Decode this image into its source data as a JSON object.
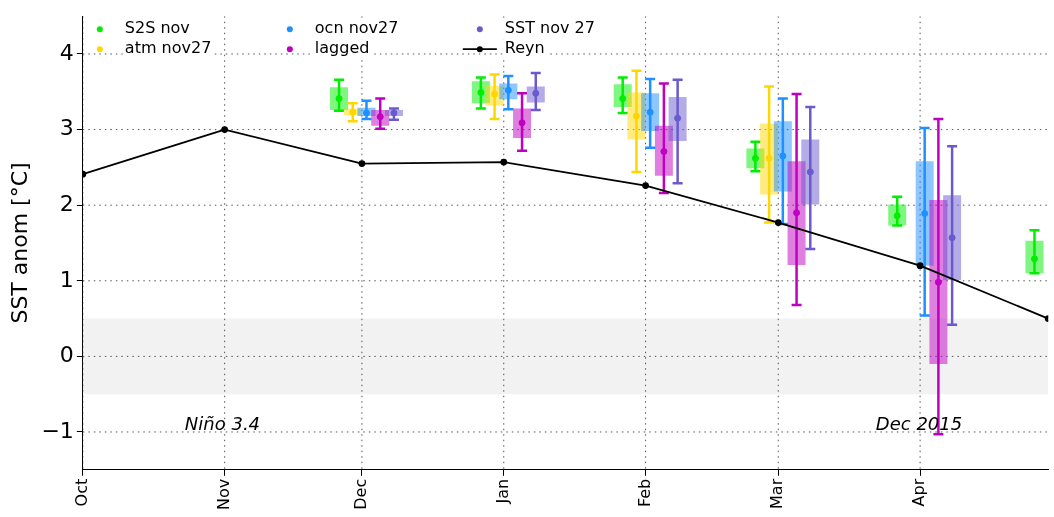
{
  "chart_data": {
    "type": "box",
    "ylabel": "SST anom [°C]",
    "xlim": [
      "2015-10-01",
      "2016-04-29"
    ],
    "xticks": [
      {
        "value": "2015-10-01",
        "label": "Oct"
      },
      {
        "value": "2015-11-01",
        "label": "Nov"
      },
      {
        "value": "2015-12-01",
        "label": "Dec"
      },
      {
        "value": "2016-01-01",
        "label": "Jan"
      },
      {
        "value": "2016-02-01",
        "label": "Feb"
      },
      {
        "value": "2016-03-01",
        "label": "Mar"
      },
      {
        "value": "2016-04-01",
        "label": "Apr"
      }
    ],
    "ylim": [
      -1.5,
      4.5
    ],
    "yticks": [
      -1,
      0,
      1,
      2,
      3,
      4
    ],
    "grid": true,
    "legend": "top left",
    "marker": "circle",
    "bands": [
      {
        "axis": "y",
        "from": -0.5,
        "to": 0.5,
        "color": "#f2f2f2"
      }
    ],
    "annotations": [
      "Niño 3.4",
      "Dec 2015"
    ],
    "series": [
      {
        "name": "S2S nov",
        "color": "#00ee00",
        "x": [
          "2015-11-26",
          "2015-12-27",
          "2016-01-27",
          "2016-02-25",
          "2016-03-27",
          "2016-04-26"
        ],
        "boxes": [
          {
            "low": 3.25,
            "q1": 3.26,
            "median": 3.41,
            "q3": 3.56,
            "high": 3.66
          },
          {
            "low": 3.28,
            "q1": 3.35,
            "median": 3.49,
            "q3": 3.64,
            "high": 3.69
          },
          {
            "low": 3.22,
            "q1": 3.3,
            "median": 3.41,
            "q3": 3.6,
            "high": 3.69
          },
          {
            "low": 2.45,
            "q1": 2.49,
            "median": 2.62,
            "q3": 2.75,
            "high": 2.84
          },
          {
            "low": 1.73,
            "q1": 1.73,
            "median": 1.86,
            "q3": 2.01,
            "high": 2.11
          },
          {
            "low": 1.1,
            "q1": 1.1,
            "median": 1.29,
            "q3": 1.53,
            "high": 1.67
          }
        ]
      },
      {
        "name": "atm nov27",
        "color": "#ffd700",
        "x": [
          "2015-11-29",
          "2015-12-30",
          "2016-01-30",
          "2016-02-28"
        ],
        "boxes": [
          {
            "low": 3.11,
            "q1": 3.19,
            "median": 3.23,
            "q3": 3.28,
            "high": 3.35
          },
          {
            "low": 3.14,
            "q1": 3.32,
            "median": 3.47,
            "q3": 3.58,
            "high": 3.73
          },
          {
            "low": 2.44,
            "q1": 2.87,
            "median": 3.18,
            "q3": 3.49,
            "high": 3.78
          },
          {
            "low": 1.77,
            "q1": 2.14,
            "median": 2.62,
            "q3": 3.08,
            "high": 3.57
          }
        ]
      },
      {
        "name": "ocn nov27",
        "color": "#1e90ff",
        "x": [
          "2015-12-02",
          "2016-01-02",
          "2016-02-02",
          "2016-03-02",
          "2016-04-02"
        ],
        "boxes": [
          {
            "low": 3.14,
            "q1": 3.18,
            "median": 3.22,
            "q3": 3.29,
            "high": 3.38
          },
          {
            "low": 3.27,
            "q1": 3.4,
            "median": 3.52,
            "q3": 3.61,
            "high": 3.71
          },
          {
            "low": 2.76,
            "q1": 2.98,
            "median": 3.23,
            "q3": 3.48,
            "high": 3.67
          },
          {
            "low": 1.75,
            "q1": 2.18,
            "median": 2.65,
            "q3": 3.11,
            "high": 3.41
          },
          {
            "low": 0.54,
            "q1": 1.2,
            "median": 1.89,
            "q3": 2.58,
            "high": 3.02
          }
        ]
      },
      {
        "name": "lagged",
        "color": "#c000c0",
        "x": [
          "2015-12-05",
          "2016-01-05",
          "2016-02-05",
          "2016-03-05",
          "2016-04-05"
        ],
        "boxes": [
          {
            "low": 3.01,
            "q1": 3.05,
            "median": 3.17,
            "q3": 3.26,
            "high": 3.41
          },
          {
            "low": 2.72,
            "q1": 2.89,
            "median": 3.09,
            "q3": 3.28,
            "high": 3.48
          },
          {
            "low": 2.16,
            "q1": 2.39,
            "median": 2.71,
            "q3": 3.05,
            "high": 3.61
          },
          {
            "low": 0.68,
            "q1": 1.21,
            "median": 1.9,
            "q3": 2.58,
            "high": 3.47
          },
          {
            "low": -1.03,
            "q1": -0.1,
            "median": 0.98,
            "q3": 2.07,
            "high": 3.14
          }
        ]
      },
      {
        "name": "SST nov 27",
        "color": "#6a5acd",
        "x": [
          "2015-12-08",
          "2016-01-08",
          "2016-02-08",
          "2016-03-08",
          "2016-04-08"
        ],
        "boxes": [
          {
            "low": 3.13,
            "q1": 3.18,
            "median": 3.22,
            "q3": 3.26,
            "high": 3.28
          },
          {
            "low": 3.26,
            "q1": 3.36,
            "median": 3.48,
            "q3": 3.57,
            "high": 3.75
          },
          {
            "low": 2.29,
            "q1": 2.85,
            "median": 3.15,
            "q3": 3.43,
            "high": 3.66
          },
          {
            "low": 1.42,
            "q1": 2.01,
            "median": 2.44,
            "q3": 2.87,
            "high": 3.3
          },
          {
            "low": 0.42,
            "q1": 1.01,
            "median": 1.57,
            "q3": 2.13,
            "high": 2.78
          }
        ]
      },
      {
        "name": "Reyn",
        "type": "line",
        "color": "#000000",
        "x": [
          "2015-10-01",
          "2015-11-01",
          "2015-12-01",
          "2016-01-01",
          "2016-02-01",
          "2016-03-01",
          "2016-04-01",
          "2016-04-29"
        ],
        "values": [
          2.41,
          3.0,
          2.55,
          2.57,
          2.26,
          1.77,
          1.2,
          0.5
        ]
      }
    ]
  }
}
